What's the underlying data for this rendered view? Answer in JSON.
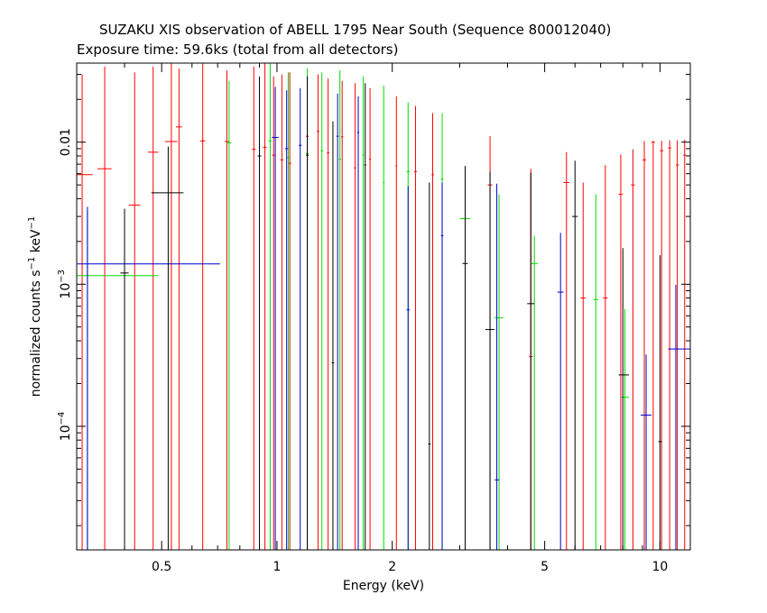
{
  "chart_data": {
    "type": "scatter",
    "title": "SUZAKU XIS observation of ABELL 1795 Near South (Sequence 800012040)",
    "subtitle": "Exposure time: 59.6ks (total from all detectors)",
    "xlabel": "Energy (keV)",
    "ylabel": {
      "prefix": "normalized counts s",
      "sup1": "−1",
      "mid": " keV",
      "sup2": "−1"
    },
    "x_scale": "log",
    "y_scale": "log",
    "xlim": [
      0.3,
      12.0
    ],
    "ylim": [
      1.35e-05,
      0.036
    ],
    "x_ticks": [
      {
        "value": 0.5,
        "label": "0.5"
      },
      {
        "value": 1,
        "label": "1"
      },
      {
        "value": 2,
        "label": "2"
      },
      {
        "value": 5,
        "label": "5"
      },
      {
        "value": 10,
        "label": "10"
      }
    ],
    "y_ticks": [
      {
        "value": 0.0001,
        "base": "10",
        "exp": "−4"
      },
      {
        "value": 0.001,
        "base": "10",
        "exp": "−3"
      },
      {
        "value": 0.01,
        "label": "0.01"
      }
    ],
    "grid": false,
    "legend": "none",
    "series": [
      {
        "color": "#ff0000",
        "points": [
          [
            0.31,
            0.33,
            0.3,
            0.0059,
            1.35e-05,
            0.03
          ],
          [
            0.355,
            0.37,
            0.34,
            0.0065,
            1.35e-05,
            0.034
          ],
          [
            0.425,
            0.44,
            0.41,
            0.0036,
            1.35e-05,
            0.031
          ],
          [
            0.475,
            0.49,
            0.46,
            0.0085,
            1.35e-05,
            0.034
          ],
          [
            0.53,
            0.55,
            0.51,
            0.0101,
            1.35e-05,
            0.036
          ],
          [
            0.555,
            0.565,
            0.545,
            0.0128,
            1.35e-05,
            0.033
          ],
          [
            0.64,
            0.65,
            0.63,
            0.0102,
            1.35e-05,
            0.036
          ],
          [
            0.74,
            0.75,
            0.73,
            0.0101,
            1.35e-05,
            0.032
          ],
          [
            0.87,
            0.88,
            0.86,
            0.0089,
            1.35e-05,
            0.034
          ],
          [
            0.93,
            0.94,
            0.92,
            0.0092,
            1.35e-05,
            0.036
          ],
          [
            0.98,
            0.99,
            0.97,
            0.0081,
            1.35e-05,
            0.029
          ],
          [
            1.03,
            1.04,
            1.02,
            0.0075,
            1.35e-05,
            0.03
          ],
          [
            1.08,
            1.09,
            1.07,
            0.0071,
            1.35e-05,
            0.031
          ],
          [
            1.2,
            1.21,
            1.19,
            0.011,
            1.35e-05,
            0.029
          ],
          [
            1.28,
            1.29,
            1.27,
            0.0119,
            1.35e-05,
            0.03
          ],
          [
            1.36,
            1.37,
            1.35,
            0.0084,
            1.35e-05,
            0.028
          ],
          [
            1.48,
            1.49,
            1.47,
            0.0109,
            1.35e-05,
            0.027
          ],
          [
            1.6,
            1.61,
            1.59,
            0.0066,
            1.35e-05,
            0.026
          ],
          [
            1.75,
            1.76,
            1.74,
            0.0076,
            1.35e-05,
            0.024
          ],
          [
            2.05,
            2.06,
            2.04,
            0.0068,
            1.35e-05,
            0.021
          ],
          [
            2.3,
            2.32,
            2.28,
            0.0062,
            1.35e-05,
            0.018
          ],
          [
            2.55,
            2.57,
            2.53,
            0.0059,
            1.35e-05,
            0.016
          ],
          [
            3.6,
            3.65,
            3.55,
            0.005,
            1.35e-05,
            0.011
          ],
          [
            4.6,
            4.65,
            4.55,
            0.00031,
            1.35e-05,
            0.0065
          ],
          [
            5.7,
            5.8,
            5.6,
            0.0052,
            1.35e-05,
            0.0085
          ],
          [
            6.3,
            6.4,
            6.2,
            0.0008,
            1.35e-05,
            0.0052
          ],
          [
            7.2,
            7.3,
            7.1,
            0.0008,
            1.35e-05,
            0.0069
          ],
          [
            7.9,
            8.0,
            7.8,
            0.0043,
            1.35e-05,
            0.0082
          ],
          [
            8.5,
            8.6,
            8.4,
            0.005,
            1.35e-05,
            0.0089
          ],
          [
            9.1,
            9.2,
            9.0,
            0.0075,
            1.35e-05,
            0.0102
          ],
          [
            9.6,
            9.7,
            9.5,
            0.01,
            1.35e-05,
            0.0102
          ],
          [
            10.1,
            10.2,
            10.0,
            0.0087,
            1.35e-05,
            0.0102
          ],
          [
            10.6,
            10.7,
            10.5,
            0.0091,
            1.35e-05,
            0.0103
          ],
          [
            11.1,
            11.2,
            11.0,
            0.0069,
            1.35e-05,
            0.0103
          ],
          [
            11.6,
            11.7,
            11.5,
            0.0081,
            1.35e-05,
            0.0104
          ]
        ]
      },
      {
        "color": "#00dd00",
        "points": [
          [
            0.32,
            0.49,
            0.3,
            0.00115,
            1.35e-05,
            0.0033
          ],
          [
            0.75,
            0.76,
            0.74,
            0.0099,
            1.35e-05,
            0.027
          ],
          [
            0.96,
            0.97,
            0.95,
            0.0102,
            1.35e-05,
            0.036
          ],
          [
            1.07,
            1.08,
            1.06,
            0.0078,
            1.35e-05,
            0.031
          ],
          [
            1.2,
            1.21,
            1.19,
            0.0083,
            1.35e-05,
            0.033
          ],
          [
            1.31,
            1.32,
            1.3,
            0.0087,
            1.35e-05,
            0.031
          ],
          [
            1.46,
            1.47,
            1.45,
            0.0076,
            1.35e-05,
            0.032
          ],
          [
            1.68,
            1.69,
            1.67,
            0.0081,
            1.35e-05,
            0.029
          ],
          [
            1.9,
            1.91,
            1.89,
            0.0052,
            1.35e-05,
            0.025
          ],
          [
            2.2,
            2.22,
            2.18,
            0.0062,
            1.35e-05,
            0.019
          ],
          [
            2.7,
            2.72,
            2.68,
            0.0055,
            1.35e-05,
            0.016
          ],
          [
            3.1,
            3.2,
            3.0,
            0.0029,
            1.35e-05,
            0.0053
          ],
          [
            3.8,
            3.9,
            3.7,
            0.00058,
            1.35e-05,
            0.0043
          ],
          [
            4.7,
            4.8,
            4.6,
            0.0014,
            1.35e-05,
            0.0022
          ],
          [
            6.8,
            6.9,
            6.7,
            0.00078,
            1.35e-05,
            0.0043
          ],
          [
            8.1,
            8.3,
            7.9,
            0.00016,
            1.35e-05,
            0.00067
          ]
        ]
      },
      {
        "color": "#0000cc",
        "points": [
          [
            0.32,
            0.71,
            0.3,
            0.00139,
            1.35e-05,
            0.0035
          ],
          [
            0.99,
            1.01,
            0.97,
            0.0108,
            1.35e-05,
            0.0245
          ],
          [
            1.06,
            1.07,
            1.05,
            0.009,
            1.35e-05,
            0.0232
          ],
          [
            1.15,
            1.16,
            1.14,
            0.0095,
            1.35e-05,
            0.024
          ],
          [
            1.44,
            1.45,
            1.43,
            0.011,
            1.35e-05,
            0.022
          ],
          [
            1.63,
            1.64,
            1.62,
            0.0117,
            1.35e-05,
            0.021
          ],
          [
            2.2,
            2.22,
            2.18,
            0.00066,
            1.35e-05,
            0.0049
          ],
          [
            2.7,
            2.72,
            2.68,
            0.0022,
            1.35e-05,
            0.0052
          ],
          [
            3.75,
            3.8,
            3.7,
            4.2e-05,
            1.35e-05,
            0.0051
          ],
          [
            5.5,
            5.6,
            5.4,
            0.00088,
            1.35e-05,
            0.0023
          ],
          [
            9.2,
            9.5,
            8.9,
            0.00012,
            1.35e-05,
            0.00032
          ],
          [
            11.0,
            12.0,
            10.5,
            0.00035,
            1.35e-05,
            0.00099
          ]
        ]
      },
      {
        "color": "#000000",
        "points": [
          [
            0.4,
            0.41,
            0.39,
            0.0012,
            1.35e-05,
            0.0034
          ],
          [
            0.52,
            0.57,
            0.47,
            0.0044,
            1.35e-05,
            0.0093
          ],
          [
            0.9,
            0.91,
            0.89,
            0.008,
            1.35e-05,
            0.029
          ],
          [
            1.2,
            1.21,
            1.19,
            0.0081,
            1.35e-05,
            0.029
          ],
          [
            1.4,
            1.41,
            1.39,
            0.00028,
            1.35e-05,
            0.014
          ],
          [
            1.7,
            1.71,
            1.69,
            0.0069,
            1.35e-05,
            0.026
          ],
          [
            2.5,
            2.52,
            2.48,
            7.5e-05,
            1.35e-05,
            0.0052
          ],
          [
            3.1,
            3.15,
            3.05,
            0.0014,
            1.35e-05,
            0.0068
          ],
          [
            3.6,
            3.7,
            3.5,
            0.00048,
            1.35e-05,
            0.0062
          ],
          [
            4.6,
            4.7,
            4.5,
            0.00073,
            1.35e-05,
            0.0061
          ],
          [
            6.0,
            6.1,
            5.9,
            0.003,
            1.35e-05,
            0.0074
          ],
          [
            8.0,
            8.3,
            7.8,
            0.00023,
            1.35e-05,
            0.0018
          ],
          [
            10.0,
            10.1,
            9.9,
            7.8e-05,
            1.35e-05,
            0.0016
          ]
        ]
      }
    ]
  }
}
